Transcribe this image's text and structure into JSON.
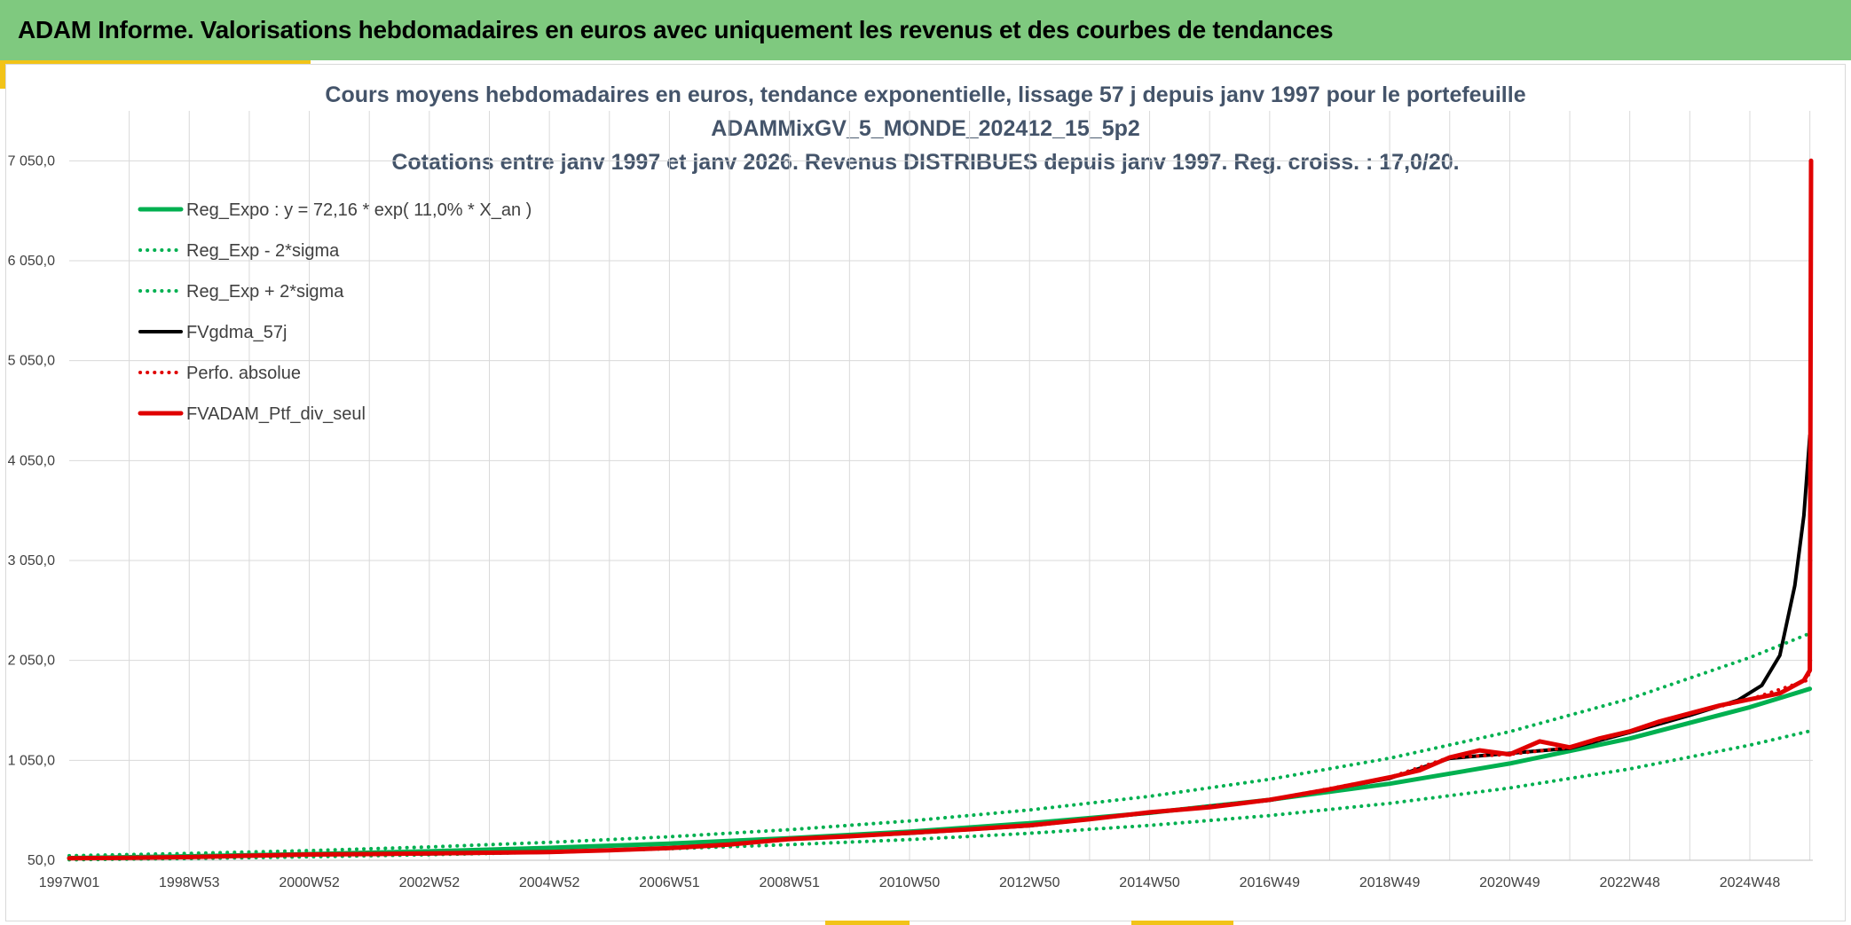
{
  "header": {
    "title": "ADAM Informe. Valorisations hebdomadaires en euros avec uniquement les revenus et des courbes de tendances"
  },
  "chart_data": {
    "type": "line",
    "title": "Cours moyens hebdomadaires en euros, tendance exponentielle, lissage 57 j depuis janv 1997 pour le portefeuille",
    "subtitle": "ADAMMixGV_5_MONDE_202412_15_5p2",
    "subtitle2": "Cotations entre janv 1997 et janv 2026. Revenus DISTRIBUES depuis janv 1997. Reg. croiss. : 17,0/20.",
    "xlabel": "",
    "ylabel": "",
    "ylim": [
      50,
      7550
    ],
    "xlim": [
      1997.0,
      2026.05
    ],
    "yticks": [
      50,
      1050,
      2050,
      3050,
      4050,
      5050,
      6050,
      7050
    ],
    "ytick_labels": [
      "50,0",
      "1 050,0",
      "2 050,0",
      "3 050,0",
      "4 050,0",
      "5 050,0",
      "6 050,0",
      "7 050,0"
    ],
    "xticks": [
      1997.0,
      1999.0,
      2001.0,
      2003.0,
      2005.0,
      2007.0,
      2009.0,
      2011.0,
      2013.0,
      2015.0,
      2017.0,
      2019.0,
      2021.0,
      2023.0,
      2025.0
    ],
    "xtick_labels": [
      "1997W01",
      "1998W53",
      "2000W52",
      "2002W52",
      "2004W52",
      "2006W51",
      "2008W51",
      "2010W50",
      "2012W50",
      "2014W50",
      "2016W49",
      "2018W49",
      "2020W49",
      "2022W48",
      "2024W48"
    ],
    "grid": true,
    "legend_position": "top-left",
    "series": [
      {
        "name": "Reg_Expo : y = 72,16 * exp( 11,0% *  X_an )",
        "color": "#00b050",
        "style": "solid",
        "width": 5,
        "x": [
          1997,
          1999,
          2001,
          2003,
          2005,
          2007,
          2009,
          2011,
          2013,
          2015,
          2017,
          2019,
          2021,
          2023,
          2025,
          2026
        ],
        "values": [
          72,
          90,
          112,
          140,
          174,
          217,
          271,
          337,
          421,
          525,
          655,
          816,
          1018,
          1269,
          1582,
          1766
        ]
      },
      {
        "name": "Reg_Exp - 2*sigma",
        "color": "#00b050",
        "style": "dotted",
        "width": 4,
        "x": [
          1997,
          1999,
          2001,
          2003,
          2005,
          2007,
          2009,
          2011,
          2013,
          2015,
          2017,
          2019,
          2021,
          2023,
          2025,
          2026
        ],
        "values": [
          55,
          68,
          85,
          106,
          132,
          165,
          206,
          257,
          320,
          399,
          497,
          620,
          773,
          964,
          1202,
          1343
        ]
      },
      {
        "name": "Reg_Exp + 2*sigma",
        "color": "#00b050",
        "style": "dotted",
        "width": 4,
        "x": [
          1997,
          1999,
          2001,
          2003,
          2005,
          2007,
          2009,
          2011,
          2013,
          2015,
          2017,
          2019,
          2021,
          2023,
          2025,
          2026
        ],
        "values": [
          95,
          118,
          147,
          183,
          229,
          285,
          356,
          443,
          553,
          690,
          860,
          1072,
          1337,
          1667,
          2079,
          2320
        ]
      },
      {
        "name": "FVgdma_57j",
        "color": "#000000",
        "style": "solid",
        "width": 4,
        "x": [
          1997,
          1999,
          2001,
          2003,
          2005,
          2007,
          2008,
          2009,
          2011,
          2013,
          2015,
          2017,
          2019,
          2020,
          2021,
          2022,
          2023,
          2024,
          2024.8,
          2025.2,
          2025.5,
          2025.75,
          2025.9,
          2026.0
        ],
        "values": [
          70,
          80,
          105,
          115,
          130,
          170,
          205,
          260,
          320,
          395,
          525,
          650,
          870,
          1070,
          1120,
          1170,
          1330,
          1500,
          1650,
          1800,
          2100,
          2800,
          3500,
          4300
        ]
      },
      {
        "name": "Perfo. absolue",
        "color": "#e00000",
        "style": "dotted",
        "width": 4,
        "x": [
          1997,
          1999,
          2001,
          2003,
          2005,
          2007,
          2008,
          2009,
          2011,
          2013,
          2015,
          2017,
          2019,
          2020,
          2021,
          2022,
          2023,
          2024,
          2025,
          2025.95,
          2026.0,
          2026.02
        ],
        "values": [
          70,
          82,
          108,
          118,
          132,
          172,
          208,
          262,
          325,
          400,
          530,
          655,
          880,
          1080,
          1110,
          1180,
          1340,
          1520,
          1660,
          1850,
          1950,
          7050
        ]
      },
      {
        "name": "FVADAM_Ptf_div_seul",
        "color": "#e00000",
        "style": "solid",
        "width": 5,
        "x": [
          1997,
          1998,
          1999,
          2000,
          2001,
          2002,
          2003,
          2004,
          2005,
          2006,
          2007,
          2008,
          2009,
          2010,
          2011,
          2012,
          2013,
          2014,
          2015,
          2016,
          2017,
          2018,
          2019,
          2019.5,
          2020,
          2020.5,
          2021,
          2021.5,
          2022,
          2022.5,
          2023,
          2023.5,
          2024,
          2024.5,
          2025,
          2025.5,
          2025.9,
          2026.0,
          2026.02
        ],
        "values": [
          70,
          75,
          82,
          95,
          108,
          112,
          118,
          125,
          132,
          150,
          172,
          208,
          262,
          290,
          325,
          360,
          400,
          460,
          530,
          580,
          655,
          760,
          880,
          950,
          1080,
          1150,
          1110,
          1240,
          1180,
          1270,
          1340,
          1440,
          1520,
          1600,
          1660,
          1720,
          1850,
          1950,
          7050
        ]
      }
    ]
  }
}
